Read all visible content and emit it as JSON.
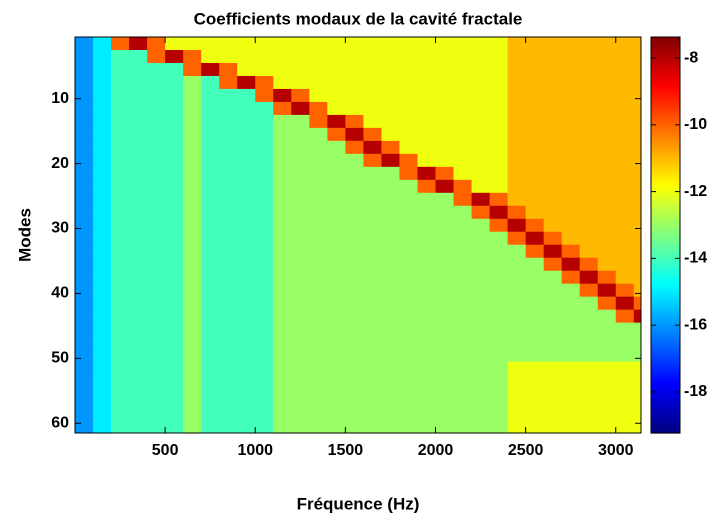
{
  "chart_data": {
    "type": "heatmap",
    "title": "Coefficients modaux de la cavité fractale",
    "xlabel": "Fréquence (Hz)",
    "ylabel": "Modes",
    "x": [
      50,
      150,
      250,
      350,
      450,
      550,
      650,
      750,
      850,
      950,
      1050,
      1150,
      1250,
      1350,
      1450,
      1550,
      1650,
      1750,
      1850,
      1950,
      2050,
      2150,
      2250,
      2350,
      2450,
      2550,
      2650,
      2750,
      2850,
      2950,
      3050,
      3150
    ],
    "y": [
      1,
      3,
      5,
      7,
      9,
      11,
      13,
      15,
      17,
      19,
      21,
      23,
      25,
      27,
      29,
      31,
      33,
      35,
      37,
      39,
      41,
      43,
      45,
      47,
      49,
      51,
      53,
      55,
      57,
      59,
      61
    ],
    "z": [
      [
        -16,
        -15,
        -10,
        -8,
        -10,
        -12,
        -12,
        -12,
        -12,
        -12,
        -12,
        -12,
        -12,
        -12,
        -12,
        -12,
        -12,
        -12,
        -12,
        -12,
        -12,
        -12,
        -12,
        -12,
        -11,
        -11,
        -11,
        -11,
        -11,
        -11,
        -11,
        -11
      ],
      [
        -16,
        -15,
        -14,
        -14,
        -10,
        -8,
        -10,
        -12,
        -12,
        -12,
        -12,
        -12,
        -12,
        -12,
        -12,
        -12,
        -12,
        -12,
        -12,
        -12,
        -12,
        -12,
        -12,
        -12,
        -11,
        -11,
        -11,
        -11,
        -11,
        -11,
        -11,
        -11
      ],
      [
        -16,
        -15,
        -14,
        -14,
        -14,
        -14,
        -10,
        -8,
        -10,
        -12,
        -12,
        -12,
        -12,
        -12,
        -12,
        -12,
        -12,
        -12,
        -12,
        -12,
        -12,
        -12,
        -12,
        -12,
        -11,
        -11,
        -11,
        -11,
        -11,
        -11,
        -11,
        -11
      ],
      [
        -16,
        -15,
        -14,
        -14,
        -14,
        -14,
        -13,
        -14,
        -10,
        -8,
        -10,
        -12,
        -12,
        -12,
        -12,
        -12,
        -12,
        -12,
        -12,
        -12,
        -12,
        -12,
        -12,
        -12,
        -11,
        -11,
        -11,
        -11,
        -11,
        -11,
        -11,
        -11
      ],
      [
        -16,
        -15,
        -14,
        -14,
        -14,
        -14,
        -13,
        -14,
        -14,
        -14,
        -10,
        -8,
        -10,
        -12,
        -12,
        -12,
        -12,
        -12,
        -12,
        -12,
        -12,
        -12,
        -12,
        -12,
        -11,
        -11,
        -11,
        -11,
        -11,
        -11,
        -11,
        -11
      ],
      [
        -16,
        -15,
        -14,
        -14,
        -14,
        -14,
        -13,
        -14,
        -14,
        -14,
        -14,
        -10,
        -8,
        -10,
        -12,
        -12,
        -12,
        -12,
        -12,
        -12,
        -12,
        -12,
        -12,
        -12,
        -11,
        -11,
        -11,
        -11,
        -11,
        -11,
        -11,
        -11
      ],
      [
        -16,
        -15,
        -14,
        -14,
        -14,
        -14,
        -13,
        -14,
        -14,
        -14,
        -14,
        -13,
        -13,
        -10,
        -8,
        -10,
        -12,
        -12,
        -12,
        -12,
        -12,
        -12,
        -12,
        -12,
        -11,
        -11,
        -11,
        -11,
        -11,
        -11,
        -11,
        -11
      ],
      [
        -16,
        -15,
        -14,
        -14,
        -14,
        -14,
        -13,
        -14,
        -14,
        -14,
        -14,
        -13,
        -13,
        -13,
        -10,
        -8,
        -10,
        -12,
        -12,
        -12,
        -12,
        -12,
        -12,
        -12,
        -11,
        -11,
        -11,
        -11,
        -11,
        -11,
        -11,
        -11
      ],
      [
        -16,
        -15,
        -14,
        -14,
        -14,
        -14,
        -13,
        -14,
        -14,
        -14,
        -14,
        -13,
        -13,
        -13,
        -13,
        -10,
        -8,
        -10,
        -12,
        -12,
        -12,
        -12,
        -12,
        -12,
        -11,
        -11,
        -11,
        -11,
        -11,
        -11,
        -11,
        -11
      ],
      [
        -16,
        -15,
        -14,
        -14,
        -14,
        -14,
        -13,
        -14,
        -14,
        -14,
        -14,
        -13,
        -13,
        -13,
        -13,
        -13,
        -10,
        -8,
        -10,
        -12,
        -12,
        -12,
        -12,
        -12,
        -11,
        -11,
        -11,
        -11,
        -11,
        -11,
        -11,
        -11
      ],
      [
        -16,
        -15,
        -14,
        -14,
        -14,
        -14,
        -13,
        -14,
        -14,
        -14,
        -14,
        -13,
        -13,
        -13,
        -13,
        -13,
        -13,
        -13,
        -10,
        -8,
        -10,
        -12,
        -12,
        -12,
        -11,
        -11,
        -11,
        -11,
        -11,
        -11,
        -11,
        -11
      ],
      [
        -16,
        -15,
        -14,
        -14,
        -14,
        -14,
        -13,
        -14,
        -14,
        -14,
        -14,
        -13,
        -13,
        -13,
        -13,
        -13,
        -13,
        -13,
        -13,
        -10,
        -8,
        -10,
        -12,
        -12,
        -11,
        -11,
        -11,
        -11,
        -11,
        -11,
        -11,
        -11
      ],
      [
        -16,
        -15,
        -14,
        -14,
        -14,
        -14,
        -13,
        -14,
        -14,
        -14,
        -14,
        -13,
        -13,
        -13,
        -13,
        -13,
        -13,
        -13,
        -13,
        -13,
        -13,
        -10,
        -8,
        -10,
        -11,
        -11,
        -11,
        -11,
        -11,
        -11,
        -11,
        -11
      ],
      [
        -16,
        -15,
        -14,
        -14,
        -14,
        -14,
        -13,
        -14,
        -14,
        -14,
        -14,
        -13,
        -13,
        -13,
        -13,
        -13,
        -13,
        -13,
        -13,
        -13,
        -13,
        -13,
        -10,
        -8,
        -10,
        -11,
        -11,
        -11,
        -11,
        -11,
        -11,
        -11
      ],
      [
        -16,
        -15,
        -14,
        -14,
        -14,
        -14,
        -13,
        -14,
        -14,
        -14,
        -14,
        -13,
        -13,
        -13,
        -13,
        -13,
        -13,
        -13,
        -13,
        -13,
        -13,
        -13,
        -13,
        -10,
        -8,
        -10,
        -11,
        -11,
        -11,
        -11,
        -11,
        -11
      ],
      [
        -16,
        -15,
        -14,
        -14,
        -14,
        -14,
        -13,
        -14,
        -14,
        -14,
        -14,
        -13,
        -13,
        -13,
        -13,
        -13,
        -13,
        -13,
        -13,
        -13,
        -13,
        -13,
        -13,
        -13,
        -10,
        -8,
        -10,
        -11,
        -11,
        -11,
        -11,
        -11
      ],
      [
        -16,
        -15,
        -14,
        -14,
        -14,
        -14,
        -13,
        -14,
        -14,
        -14,
        -14,
        -13,
        -13,
        -13,
        -13,
        -13,
        -13,
        -13,
        -13,
        -13,
        -13,
        -13,
        -13,
        -13,
        -13,
        -10,
        -8,
        -10,
        -11,
        -11,
        -11,
        -11
      ],
      [
        -16,
        -15,
        -14,
        -14,
        -14,
        -14,
        -13,
        -14,
        -14,
        -14,
        -14,
        -13,
        -13,
        -13,
        -13,
        -13,
        -13,
        -13,
        -13,
        -13,
        -13,
        -13,
        -13,
        -13,
        -13,
        -13,
        -10,
        -8,
        -10,
        -11,
        -11,
        -11
      ],
      [
        -16,
        -15,
        -14,
        -14,
        -14,
        -14,
        -13,
        -14,
        -14,
        -14,
        -14,
        -13,
        -13,
        -13,
        -13,
        -13,
        -13,
        -13,
        -13,
        -13,
        -13,
        -13,
        -13,
        -13,
        -13,
        -13,
        -13,
        -10,
        -8,
        -10,
        -11,
        -11
      ],
      [
        -16,
        -15,
        -14,
        -14,
        -14,
        -14,
        -13,
        -14,
        -14,
        -14,
        -14,
        -13,
        -13,
        -13,
        -13,
        -13,
        -13,
        -13,
        -13,
        -13,
        -13,
        -13,
        -13,
        -13,
        -13,
        -13,
        -13,
        -13,
        -10,
        -8,
        -10,
        -11
      ],
      [
        -16,
        -15,
        -14,
        -14,
        -14,
        -14,
        -13,
        -14,
        -14,
        -14,
        -14,
        -13,
        -13,
        -13,
        -13,
        -13,
        -13,
        -13,
        -13,
        -13,
        -13,
        -13,
        -13,
        -13,
        -13,
        -13,
        -13,
        -13,
        -13,
        -10,
        -8,
        -10
      ],
      [
        -16,
        -15,
        -14,
        -14,
        -14,
        -14,
        -13,
        -14,
        -14,
        -14,
        -14,
        -13,
        -13,
        -13,
        -13,
        -13,
        -13,
        -13,
        -13,
        -13,
        -13,
        -13,
        -13,
        -13,
        -13,
        -13,
        -13,
        -13,
        -13,
        -13,
        -10,
        -8
      ],
      [
        -16,
        -15,
        -14,
        -14,
        -14,
        -14,
        -13,
        -14,
        -14,
        -14,
        -14,
        -13,
        -13,
        -13,
        -13,
        -13,
        -13,
        -13,
        -13,
        -13,
        -13,
        -13,
        -13,
        -13,
        -13,
        -13,
        -13,
        -13,
        -13,
        -13,
        -13,
        -13
      ],
      [
        -16,
        -15,
        -14,
        -14,
        -14,
        -14,
        -13,
        -14,
        -14,
        -14,
        -14,
        -13,
        -13,
        -13,
        -13,
        -13,
        -13,
        -13,
        -13,
        -13,
        -13,
        -13,
        -13,
        -13,
        -13,
        -13,
        -13,
        -13,
        -13,
        -13,
        -13,
        -13
      ],
      [
        -16,
        -15,
        -14,
        -14,
        -14,
        -14,
        -13,
        -14,
        -14,
        -14,
        -14,
        -13,
        -13,
        -13,
        -13,
        -13,
        -13,
        -13,
        -13,
        -13,
        -13,
        -13,
        -13,
        -13,
        -13,
        -13,
        -13,
        -13,
        -13,
        -13,
        -13,
        -13
      ],
      [
        -16,
        -15,
        -14,
        -14,
        -14,
        -14,
        -13,
        -14,
        -14,
        -14,
        -14,
        -13,
        -13,
        -13,
        -13,
        -13,
        -13,
        -13,
        -13,
        -13,
        -13,
        -13,
        -13,
        -13,
        -12,
        -12,
        -12,
        -12,
        -12,
        -12,
        -12,
        -12
      ],
      [
        -16,
        -15,
        -14,
        -14,
        -14,
        -14,
        -13,
        -14,
        -14,
        -14,
        -14,
        -13,
        -13,
        -13,
        -13,
        -13,
        -13,
        -13,
        -13,
        -13,
        -13,
        -13,
        -13,
        -13,
        -12,
        -12,
        -12,
        -12,
        -12,
        -12,
        -12,
        -12
      ],
      [
        -16,
        -15,
        -14,
        -14,
        -14,
        -14,
        -13,
        -14,
        -14,
        -14,
        -14,
        -13,
        -13,
        -13,
        -13,
        -13,
        -13,
        -13,
        -13,
        -13,
        -13,
        -13,
        -13,
        -13,
        -12,
        -12,
        -12,
        -12,
        -12,
        -12,
        -12,
        -12
      ],
      [
        -16,
        -15,
        -14,
        -14,
        -14,
        -14,
        -13,
        -14,
        -14,
        -14,
        -14,
        -13,
        -13,
        -13,
        -13,
        -13,
        -13,
        -13,
        -13,
        -13,
        -13,
        -13,
        -13,
        -13,
        -12,
        -12,
        -12,
        -12,
        -12,
        -12,
        -12,
        -12
      ],
      [
        -16,
        -15,
        -14,
        -14,
        -14,
        -14,
        -13,
        -14,
        -14,
        -14,
        -14,
        -13,
        -13,
        -13,
        -13,
        -13,
        -13,
        -13,
        -13,
        -13,
        -13,
        -13,
        -13,
        -13,
        -12,
        -12,
        -12,
        -12,
        -12,
        -12,
        -12,
        -12
      ],
      [
        -16,
        -15,
        -14,
        -14,
        -14,
        -14,
        -13,
        -14,
        -14,
        -14,
        -14,
        -13,
        -13,
        -13,
        -13,
        -13,
        -13,
        -13,
        -13,
        -13,
        -13,
        -13,
        -13,
        -13,
        -12,
        -12,
        -12,
        -12,
        -12,
        -12,
        -12,
        -12
      ]
    ],
    "xlim": [
      0,
      3140
    ],
    "ylim": [
      61.5,
      0.5
    ],
    "xticks": [
      500,
      1000,
      1500,
      2000,
      2500,
      3000
    ],
    "yticks": [
      10,
      20,
      30,
      40,
      50,
      60
    ],
    "clim": [
      -19.23,
      -7.37
    ],
    "cticks": [
      -8,
      -10,
      -12,
      -14,
      -16,
      -18
    ],
    "colormap": "jet"
  }
}
